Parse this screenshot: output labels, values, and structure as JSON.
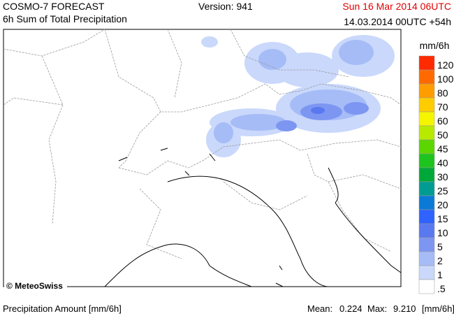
{
  "header": {
    "title": "COSMO-7 FORECAST",
    "subtitle": "6h Sum of Total Precipitation",
    "version": "Version: 941",
    "valid_time": "Sun 16 Mar 2014 06UTC",
    "run_time": "14.03.2014 00UTC +54h"
  },
  "legend": {
    "unit": "mm/6h",
    "items": [
      {
        "label": "120",
        "color": "#ff2a00"
      },
      {
        "label": "100",
        "color": "#ff6a00"
      },
      {
        "label": "80",
        "color": "#ff9d00"
      },
      {
        "label": "70",
        "color": "#ffcc00"
      },
      {
        "label": "60",
        "color": "#f5f500"
      },
      {
        "label": "50",
        "color": "#b8ea00"
      },
      {
        "label": "45",
        "color": "#5cd600"
      },
      {
        "label": "40",
        "color": "#1ec41e"
      },
      {
        "label": "30",
        "color": "#00a83a"
      },
      {
        "label": "25",
        "color": "#009c94"
      },
      {
        "label": "20",
        "color": "#0a7ad6"
      },
      {
        "label": "15",
        "color": "#2f62ff"
      },
      {
        "label": "10",
        "color": "#5a78f0"
      },
      {
        "label": "5",
        "color": "#7d96f2"
      },
      {
        "label": "2",
        "color": "#a6bcf7"
      },
      {
        "label": "1",
        "color": "#c9d8fb"
      },
      {
        "label": ".5",
        "color": "#ffffff"
      }
    ]
  },
  "map": {
    "copyright": "© MeteoSwiss"
  },
  "footer": {
    "label": "Precipitation Amount [mm/6h]",
    "mean_label": "Mean:",
    "mean": "0.224",
    "max_label": "Max:",
    "max": "9.210",
    "unit": "[mm/6h]"
  }
}
